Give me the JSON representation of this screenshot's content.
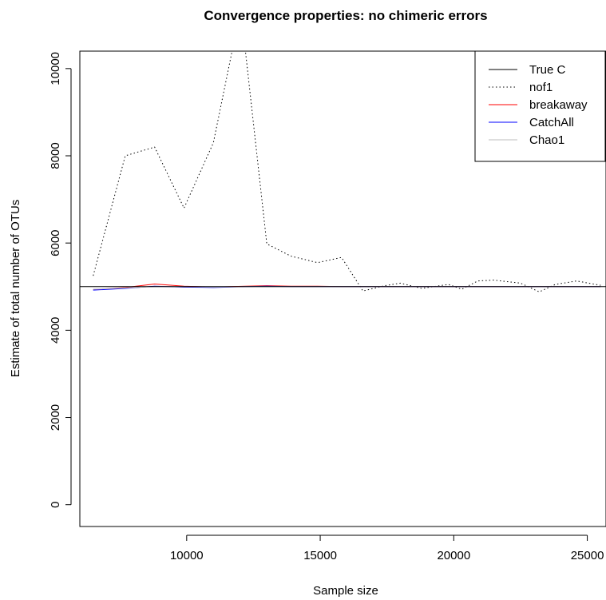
{
  "chart_data": {
    "type": "line",
    "title": "Convergence properties: no chimeric errors",
    "xlabel": "Sample size",
    "ylabel": "Estimate of total number of OTUs",
    "xlim": [
      6000,
      25700
    ],
    "ylim": [
      -500,
      10400
    ],
    "xticks": [
      10000,
      15000,
      20000,
      25000
    ],
    "yticks": [
      0,
      2000,
      4000,
      6000,
      8000,
      10000
    ],
    "grid": false,
    "legend_position": "top-right",
    "hline": {
      "name": "True C",
      "value": 5000,
      "color": "#000000"
    },
    "series": [
      {
        "name": "nof1",
        "color": "#000000",
        "dash": "dotted",
        "x": [
          6500,
          7700,
          8800,
          9900,
          11000,
          11700,
          12200,
          13000,
          13900,
          14900,
          15800,
          16600,
          17400,
          18000,
          18800,
          19800,
          20300,
          20900,
          21500,
          22500,
          23200,
          23800,
          24600,
          25500
        ],
        "y": [
          5250,
          8000,
          8200,
          6800,
          8300,
          10400,
          10400,
          5980,
          5700,
          5550,
          5670,
          4900,
          5020,
          5080,
          4960,
          5050,
          4940,
          5130,
          5150,
          5080,
          4880,
          5050,
          5130,
          5030
        ]
      },
      {
        "name": "breakaway",
        "color": "#ff0000",
        "dash": "solid",
        "x": [
          6500,
          7700,
          8800,
          9900,
          11000,
          12200,
          13000,
          13900,
          14900,
          15800,
          16600,
          18000,
          19800,
          21500,
          23200,
          25500
        ],
        "y": [
          4930,
          4980,
          5060,
          5010,
          4990,
          5010,
          5020,
          5010,
          5010,
          5000,
          5000,
          5000,
          5000,
          5000,
          5000,
          5000
        ]
      },
      {
        "name": "CatchAll",
        "color": "#0000ff",
        "dash": "solid",
        "x": [
          6500,
          7700,
          8800,
          9900,
          11000,
          12200,
          13000,
          13900,
          14900,
          15800,
          16600,
          18000,
          19800,
          21500,
          23200,
          25500
        ],
        "y": [
          4920,
          4960,
          5010,
          4990,
          4980,
          5000,
          5010,
          5000,
          5000,
          5000,
          5000,
          5000,
          5000,
          5000,
          5000,
          5000
        ]
      },
      {
        "name": "Chao1",
        "color": "#bebebe",
        "dash": "solid",
        "x": [
          6500,
          7700,
          8800,
          9900,
          11000,
          12200,
          13000,
          13900,
          14900,
          15800,
          16600,
          18000,
          19800,
          21500,
          23200,
          25500
        ],
        "y": [
          4940,
          4970,
          5000,
          5000,
          4990,
          5000,
          5000,
          5000,
          5000,
          5000,
          5000,
          5000,
          5000,
          5000,
          5000,
          5000
        ]
      }
    ],
    "legend": [
      {
        "label": "True C",
        "color": "#000000",
        "dash": "solid"
      },
      {
        "label": "nof1",
        "color": "#000000",
        "dash": "dotted"
      },
      {
        "label": "breakaway",
        "color": "#ff0000",
        "dash": "solid"
      },
      {
        "label": "CatchAll",
        "color": "#0000ff",
        "dash": "solid"
      },
      {
        "label": "Chao1",
        "color": "#bebebe",
        "dash": "solid"
      }
    ]
  }
}
